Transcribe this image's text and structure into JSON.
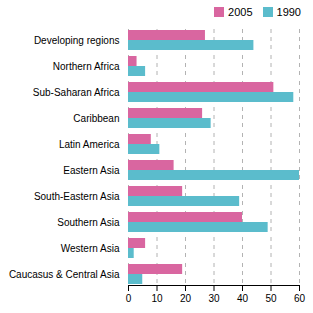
{
  "chart_data": {
    "type": "bar",
    "orientation": "horizontal",
    "categories": [
      "Developing regions",
      "Northern Africa",
      "Sub-Saharan Africa",
      "Caribbean",
      "Latin America",
      "Eastern Asia",
      "South-Eastern Asia",
      "Southern Asia",
      "Western Asia",
      "Caucasus & Central Asia"
    ],
    "series": [
      {
        "name": "2005",
        "color": "#d966a0",
        "values": [
          27,
          3,
          51,
          26,
          8,
          16,
          19,
          40,
          6,
          19
        ]
      },
      {
        "name": "1990",
        "color": "#5bbccc",
        "values": [
          44,
          6,
          58,
          29,
          11,
          60,
          39,
          49,
          2,
          5
        ]
      }
    ],
    "xlim": [
      0,
      60
    ],
    "xticks": [
      0,
      10,
      20,
      30,
      40,
      50,
      60
    ],
    "grid": true,
    "legend": "upper right"
  }
}
